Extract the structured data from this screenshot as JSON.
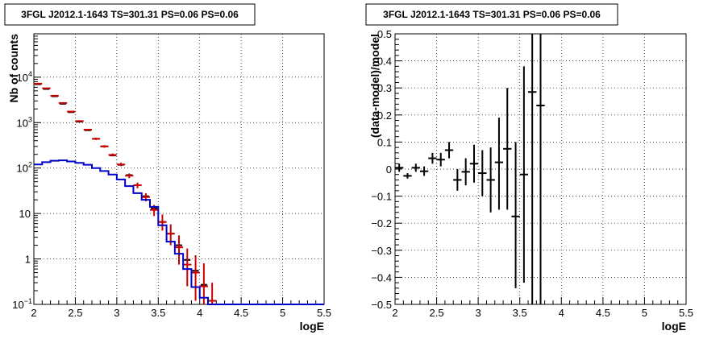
{
  "chart_data": [
    {
      "type": "scatter",
      "title": "3FGL J2012.1-1643 TS=301.31 PS=0.06 PS=0.06",
      "xlabel": "logE",
      "ylabel": "Nb of counts",
      "xlim": [
        2,
        5.5
      ],
      "ylim": [
        0.1,
        90000
      ],
      "yscale": "log",
      "grid": true,
      "x_ticks": [
        {
          "v": 2,
          "label": "2"
        },
        {
          "v": 2.5,
          "label": "2.5"
        },
        {
          "v": 3,
          "label": "3"
        },
        {
          "v": 3.5,
          "label": "3.5"
        },
        {
          "v": 4,
          "label": "4"
        },
        {
          "v": 4.5,
          "label": "4.5"
        },
        {
          "v": 5,
          "label": "5"
        },
        {
          "v": 5.5,
          "label": "5.5"
        }
      ],
      "y_ticks": [
        {
          "v": 0.1,
          "label": "10",
          "sup": "−1"
        },
        {
          "v": 1,
          "label": "1",
          "sup": ""
        },
        {
          "v": 10,
          "label": "10",
          "sup": ""
        },
        {
          "v": 100,
          "label": "10",
          "sup": "2"
        },
        {
          "v": 1000,
          "label": "10",
          "sup": "3"
        },
        {
          "v": 10000,
          "label": "10",
          "sup": "4"
        }
      ],
      "series": [
        {
          "color": "#000000",
          "style": "markers",
          "points": [
            [
              2.05,
              7000
            ],
            [
              2.15,
              5500
            ],
            [
              2.25,
              3800
            ],
            [
              2.35,
              2600
            ],
            [
              2.45,
              1700
            ],
            [
              2.55,
              1050
            ],
            [
              2.65,
              680
            ],
            [
              2.75,
              440
            ],
            [
              2.85,
              300
            ],
            [
              2.95,
              190
            ],
            [
              3.05,
              118
            ],
            [
              3.15,
              70
            ],
            [
              3.25,
              42
            ],
            [
              3.35,
              24
            ],
            [
              3.45,
              13
            ],
            [
              3.55,
              6.5
            ],
            [
              3.65,
              3.6
            ],
            [
              3.75,
              2.0
            ],
            [
              3.85,
              0.95
            ],
            [
              3.95,
              0.55
            ],
            [
              4.05,
              0.27
            ],
            [
              4.15,
              0.12
            ]
          ]
        },
        {
          "color": "#cc0000",
          "style": "errorbars",
          "points": [
            [
              2.05,
              7200,
              7000,
              7400
            ],
            [
              2.15,
              5700,
              5550,
              5850
            ],
            [
              2.25,
              3900,
              3780,
              4020
            ],
            [
              2.35,
              2700,
              2600,
              2800
            ],
            [
              2.45,
              1750,
              1680,
              1820
            ],
            [
              2.55,
              1080,
              1030,
              1130
            ],
            [
              2.65,
              700,
              670,
              730
            ],
            [
              2.75,
              440,
              415,
              465
            ],
            [
              2.85,
              300,
              280,
              320
            ],
            [
              2.95,
              195,
              180,
              210
            ],
            [
              3.05,
              120,
              110,
              131
            ],
            [
              3.15,
              68,
              60,
              76
            ],
            [
              3.25,
              42,
              36,
              48
            ],
            [
              3.35,
              23,
              18.5,
              28
            ],
            [
              3.45,
              12,
              8.8,
              15.5
            ],
            [
              3.55,
              6.5,
              4.2,
              9.5
            ],
            [
              3.65,
              3.6,
              2.0,
              5.8
            ],
            [
              3.75,
              1.8,
              0.75,
              3.3
            ],
            [
              3.85,
              0.75,
              0.25,
              1.7
            ],
            [
              3.95,
              0.5,
              0.12,
              1.2
            ],
            [
              4.05,
              0.25,
              0.1,
              0.8
            ],
            [
              4.15,
              0.12,
              0.1,
              0.3
            ]
          ]
        },
        {
          "color": "#0000cc",
          "style": "step",
          "points": [
            [
              2.0,
              120
            ],
            [
              2.1,
              135
            ],
            [
              2.2,
              145
            ],
            [
              2.3,
              148
            ],
            [
              2.4,
              140
            ],
            [
              2.5,
              130
            ],
            [
              2.6,
              118
            ],
            [
              2.7,
              100
            ],
            [
              2.8,
              86
            ],
            [
              2.9,
              72
            ],
            [
              3.0,
              56
            ],
            [
              3.1,
              40
            ],
            [
              3.2,
              28
            ],
            [
              3.3,
              20
            ],
            [
              3.4,
              14
            ],
            [
              3.5,
              5.5
            ],
            [
              3.6,
              2.4
            ],
            [
              3.7,
              1.3
            ],
            [
              3.8,
              0.6
            ],
            [
              3.9,
              0.24
            ],
            [
              4.0,
              0.14
            ],
            [
              4.1,
              0.1
            ],
            [
              4.2,
              0.1
            ],
            [
              4.3,
              0.1
            ],
            [
              4.4,
              0.1
            ],
            [
              4.5,
              0.1
            ],
            [
              5.0,
              0.1
            ],
            [
              5.5,
              0.1
            ]
          ]
        }
      ]
    },
    {
      "type": "scatter",
      "title": "3FGL J2012.1-1643 TS=301.31 PS=0.06 PS=0.06",
      "xlabel": "logE",
      "ylabel": "(data-model)/model",
      "xlim": [
        2,
        5.5
      ],
      "ylim": [
        -0.5,
        0.5
      ],
      "grid": true,
      "x_ticks": [
        {
          "v": 2,
          "label": "2"
        },
        {
          "v": 2.5,
          "label": "2.5"
        },
        {
          "v": 3,
          "label": "3"
        },
        {
          "v": 3.5,
          "label": "3.5"
        },
        {
          "v": 4,
          "label": "4"
        },
        {
          "v": 4.5,
          "label": "4.5"
        },
        {
          "v": 5,
          "label": "5"
        },
        {
          "v": 5.5,
          "label": "5.5"
        }
      ],
      "y_ticks": [
        {
          "v": -0.5,
          "label": "−0.5"
        },
        {
          "v": -0.4,
          "label": "−0.4"
        },
        {
          "v": -0.3,
          "label": "−0.3"
        },
        {
          "v": -0.2,
          "label": "−0.2"
        },
        {
          "v": -0.1,
          "label": "−0.1"
        },
        {
          "v": 0,
          "label": "0"
        },
        {
          "v": 0.1,
          "label": "0.1"
        },
        {
          "v": 0.2,
          "label": "0.2"
        },
        {
          "v": 0.3,
          "label": "0.3"
        },
        {
          "v": 0.4,
          "label": "0.4"
        },
        {
          "v": 0.5,
          "label": "0.5"
        }
      ],
      "series": [
        {
          "color": "#000000",
          "style": "errorbars",
          "points": [
            [
              2.05,
              0.005,
              -0.01,
              0.02
            ],
            [
              2.15,
              -0.025,
              -0.035,
              -0.015
            ],
            [
              2.25,
              0.005,
              -0.01,
              0.02
            ],
            [
              2.35,
              -0.008,
              -0.025,
              0.01
            ],
            [
              2.45,
              0.04,
              0.02,
              0.06
            ],
            [
              2.55,
              0.035,
              0.01,
              0.06
            ],
            [
              2.65,
              0.07,
              0.04,
              0.1
            ],
            [
              2.75,
              -0.04,
              -0.08,
              0.0
            ],
            [
              2.85,
              -0.01,
              -0.06,
              0.04
            ],
            [
              2.95,
              0.02,
              -0.05,
              0.09
            ],
            [
              3.05,
              -0.015,
              -0.1,
              0.07
            ],
            [
              3.15,
              -0.04,
              -0.16,
              0.08
            ],
            [
              3.25,
              0.025,
              -0.15,
              0.19
            ],
            [
              3.35,
              0.075,
              -0.15,
              0.3
            ],
            [
              3.45,
              -0.175,
              -0.44,
              0.1
            ],
            [
              3.55,
              -0.02,
              -0.42,
              0.38
            ],
            [
              3.65,
              0.285,
              -0.5,
              0.5
            ],
            [
              3.75,
              0.235,
              -0.5,
              0.5
            ]
          ]
        }
      ]
    }
  ]
}
